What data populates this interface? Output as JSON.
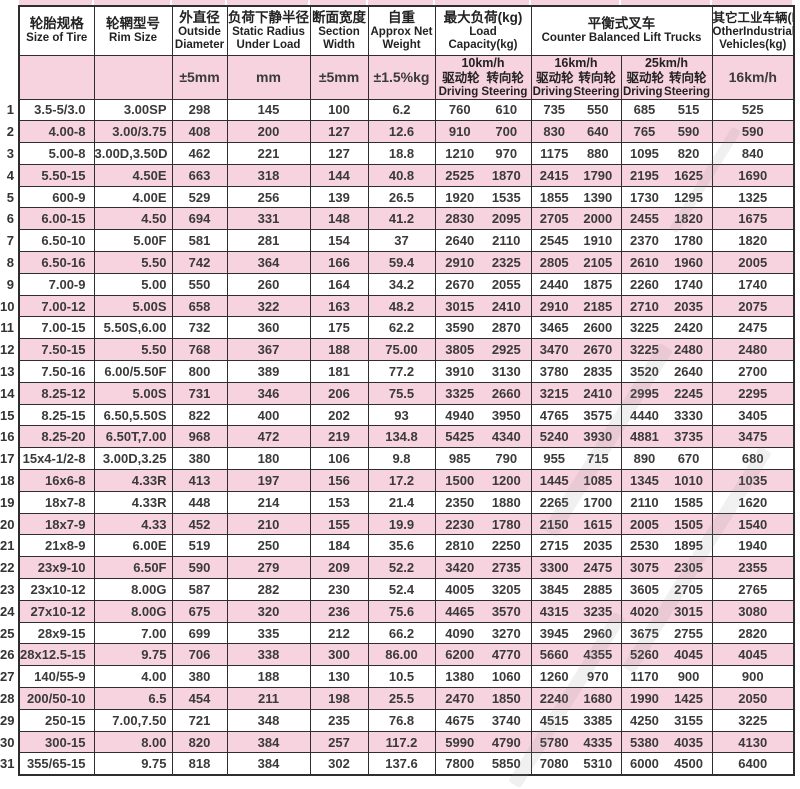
{
  "table": {
    "header": {
      "tire": {
        "zh": "轮胎规格",
        "en": "Size of Tire"
      },
      "rim": {
        "zh": "轮辋型号",
        "en": "Rim Size"
      },
      "od": {
        "zh": "外直径",
        "en": "Outside Diameter",
        "sub": "±5mm"
      },
      "sr": {
        "zh": "负荷下静半径",
        "en": "Static Radius Under Load",
        "sub": "mm"
      },
      "sw": {
        "zh": "断面宽度",
        "en": "Section Width",
        "sub": "±5mm"
      },
      "wt": {
        "zh": "自重",
        "en": "Approx Net Weight",
        "sub": "±1.5%kg"
      },
      "load": {
        "zh": "最大负荷(kg)",
        "en": "Load Capacity(kg)"
      },
      "counter": {
        "zh": "平衡式叉车",
        "en": "Counter Balanced Lift Trucks"
      },
      "other": {
        "zh": "其它工业车辆(kg)",
        "en": "OtherIndustrial Vehicles(kg)",
        "sub": "16km/h"
      },
      "speed10": {
        "speed": "10km/h",
        "drive_zh": "驱动轮",
        "steer_zh": "转向轮",
        "drive_en": "Driving",
        "steer_en": "Steering"
      },
      "speed16": {
        "speed": "16km/h",
        "drive_zh": "驱动轮",
        "steer_zh": "转向轮",
        "drive_en": "Driving",
        "steer_en": "Steering"
      },
      "speed25": {
        "speed": "25km/h",
        "drive_zh": "驱动轮",
        "steer_zh": "转向轮",
        "drive_en": "Driving",
        "steer_en": "Steering"
      }
    },
    "rows": [
      [
        "1",
        "3.5-5/3.0",
        "3.00SP",
        "298",
        "145",
        "100",
        "6.2",
        "760",
        "610",
        "735",
        "550",
        "685",
        "515",
        "525"
      ],
      [
        "2",
        "4.00-8",
        "3.00/3.75",
        "408",
        "200",
        "127",
        "12.6",
        "910",
        "700",
        "830",
        "640",
        "765",
        "590",
        "590"
      ],
      [
        "3",
        "5.00-8",
        "3.00D,3.50D",
        "462",
        "221",
        "127",
        "18.8",
        "1210",
        "970",
        "1175",
        "880",
        "1095",
        "820",
        "840"
      ],
      [
        "4",
        "5.50-15",
        "4.50E",
        "663",
        "318",
        "144",
        "40.8",
        "2525",
        "1870",
        "2415",
        "1790",
        "2195",
        "1625",
        "1690"
      ],
      [
        "5",
        "600-9",
        "4.00E",
        "529",
        "256",
        "139",
        "26.5",
        "1920",
        "1535",
        "1855",
        "1390",
        "1730",
        "1295",
        "1325"
      ],
      [
        "6",
        "6.00-15",
        "4.50",
        "694",
        "331",
        "148",
        "41.2",
        "2830",
        "2095",
        "2705",
        "2000",
        "2455",
        "1820",
        "1675"
      ],
      [
        "7",
        "6.50-10",
        "5.00F",
        "581",
        "281",
        "154",
        "37",
        "2640",
        "2110",
        "2545",
        "1910",
        "2370",
        "1780",
        "1820"
      ],
      [
        "8",
        "6.50-16",
        "5.50",
        "742",
        "364",
        "166",
        "59.4",
        "2910",
        "2325",
        "2805",
        "2105",
        "2610",
        "1960",
        "2005"
      ],
      [
        "9",
        "7.00-9",
        "5.00",
        "550",
        "260",
        "164",
        "34.2",
        "2670",
        "2055",
        "2440",
        "1875",
        "2260",
        "1740",
        "1740"
      ],
      [
        "10",
        "7.00-12",
        "5.00S",
        "658",
        "322",
        "163",
        "48.2",
        "3015",
        "2410",
        "2910",
        "2185",
        "2710",
        "2035",
        "2075"
      ],
      [
        "11",
        "7.00-15",
        "5.50S,6.00",
        "732",
        "360",
        "175",
        "62.2",
        "3590",
        "2870",
        "3465",
        "2600",
        "3225",
        "2420",
        "2475"
      ],
      [
        "12",
        "7.50-15",
        "5.50",
        "768",
        "367",
        "188",
        "75.00",
        "3805",
        "2925",
        "3470",
        "2670",
        "3225",
        "2480",
        "2480"
      ],
      [
        "13",
        "7.50-16",
        "6.00/5.50F",
        "800",
        "389",
        "181",
        "77.2",
        "3910",
        "3130",
        "3780",
        "2835",
        "3520",
        "2640",
        "2700"
      ],
      [
        "14",
        "8.25-12",
        "5.00S",
        "731",
        "346",
        "206",
        "75.5",
        "3325",
        "2660",
        "3215",
        "2410",
        "2995",
        "2245",
        "2295"
      ],
      [
        "15",
        "8.25-15",
        "6.50,5.50S",
        "822",
        "400",
        "202",
        "93",
        "4940",
        "3950",
        "4765",
        "3575",
        "4440",
        "3330",
        "3405"
      ],
      [
        "16",
        "8.25-20",
        "6.50T,7.00",
        "968",
        "472",
        "219",
        "134.8",
        "5425",
        "4340",
        "5240",
        "3930",
        "4881",
        "3735",
        "3475"
      ],
      [
        "17",
        "15x4-1/2-8",
        "3.00D,3.25",
        "380",
        "180",
        "106",
        "9.8",
        "985",
        "790",
        "955",
        "715",
        "890",
        "670",
        "680"
      ],
      [
        "18",
        "16x6-8",
        "4.33R",
        "413",
        "197",
        "156",
        "17.2",
        "1500",
        "1200",
        "1445",
        "1085",
        "1345",
        "1010",
        "1035"
      ],
      [
        "19",
        "18x7-8",
        "4.33R",
        "448",
        "214",
        "153",
        "21.4",
        "2350",
        "1880",
        "2265",
        "1700",
        "2110",
        "1585",
        "1620"
      ],
      [
        "20",
        "18x7-9",
        "4.33",
        "452",
        "210",
        "155",
        "19.9",
        "2230",
        "1780",
        "2150",
        "1615",
        "2005",
        "1505",
        "1540"
      ],
      [
        "21",
        "21x8-9",
        "6.00E",
        "519",
        "250",
        "184",
        "35.6",
        "2810",
        "2250",
        "2715",
        "2035",
        "2530",
        "1895",
        "1940"
      ],
      [
        "22",
        "23x9-10",
        "6.50F",
        "590",
        "279",
        "209",
        "52.2",
        "3420",
        "2735",
        "3300",
        "2475",
        "3075",
        "2305",
        "2355"
      ],
      [
        "23",
        "23x10-12",
        "8.00G",
        "587",
        "282",
        "230",
        "52.4",
        "4005",
        "3205",
        "3845",
        "2885",
        "3605",
        "2705",
        "2765"
      ],
      [
        "24",
        "27x10-12",
        "8.00G",
        "675",
        "320",
        "236",
        "75.6",
        "4465",
        "3570",
        "4315",
        "3235",
        "4020",
        "3015",
        "3080"
      ],
      [
        "25",
        "28x9-15",
        "7.00",
        "699",
        "335",
        "212",
        "66.2",
        "4090",
        "3270",
        "3945",
        "2960",
        "3675",
        "2755",
        "2820"
      ],
      [
        "26",
        "28x12.5-15",
        "9.75",
        "706",
        "338",
        "300",
        "86.00",
        "6200",
        "4770",
        "5660",
        "4355",
        "5260",
        "4045",
        "4045"
      ],
      [
        "27",
        "140/55-9",
        "4.00",
        "380",
        "188",
        "130",
        "10.5",
        "1380",
        "1060",
        "1260",
        "970",
        "1170",
        "900",
        "900"
      ],
      [
        "28",
        "200/50-10",
        "6.5",
        "454",
        "211",
        "198",
        "25.5",
        "2470",
        "1850",
        "2240",
        "1680",
        "1990",
        "1425",
        "2050"
      ],
      [
        "29",
        "250-15",
        "7.00,7.50",
        "721",
        "348",
        "235",
        "76.8",
        "4675",
        "3740",
        "4515",
        "3385",
        "4250",
        "3155",
        "3225"
      ],
      [
        "30",
        "300-15",
        "8.00",
        "820",
        "384",
        "257",
        "117.2",
        "5990",
        "4790",
        "5780",
        "4335",
        "5380",
        "4035",
        "4130"
      ],
      [
        "31",
        "355/65-15",
        "9.75",
        "818",
        "384",
        "302",
        "137.6",
        "7800",
        "5850",
        "7080",
        "5310",
        "6000",
        "4500",
        "6400"
      ]
    ]
  }
}
